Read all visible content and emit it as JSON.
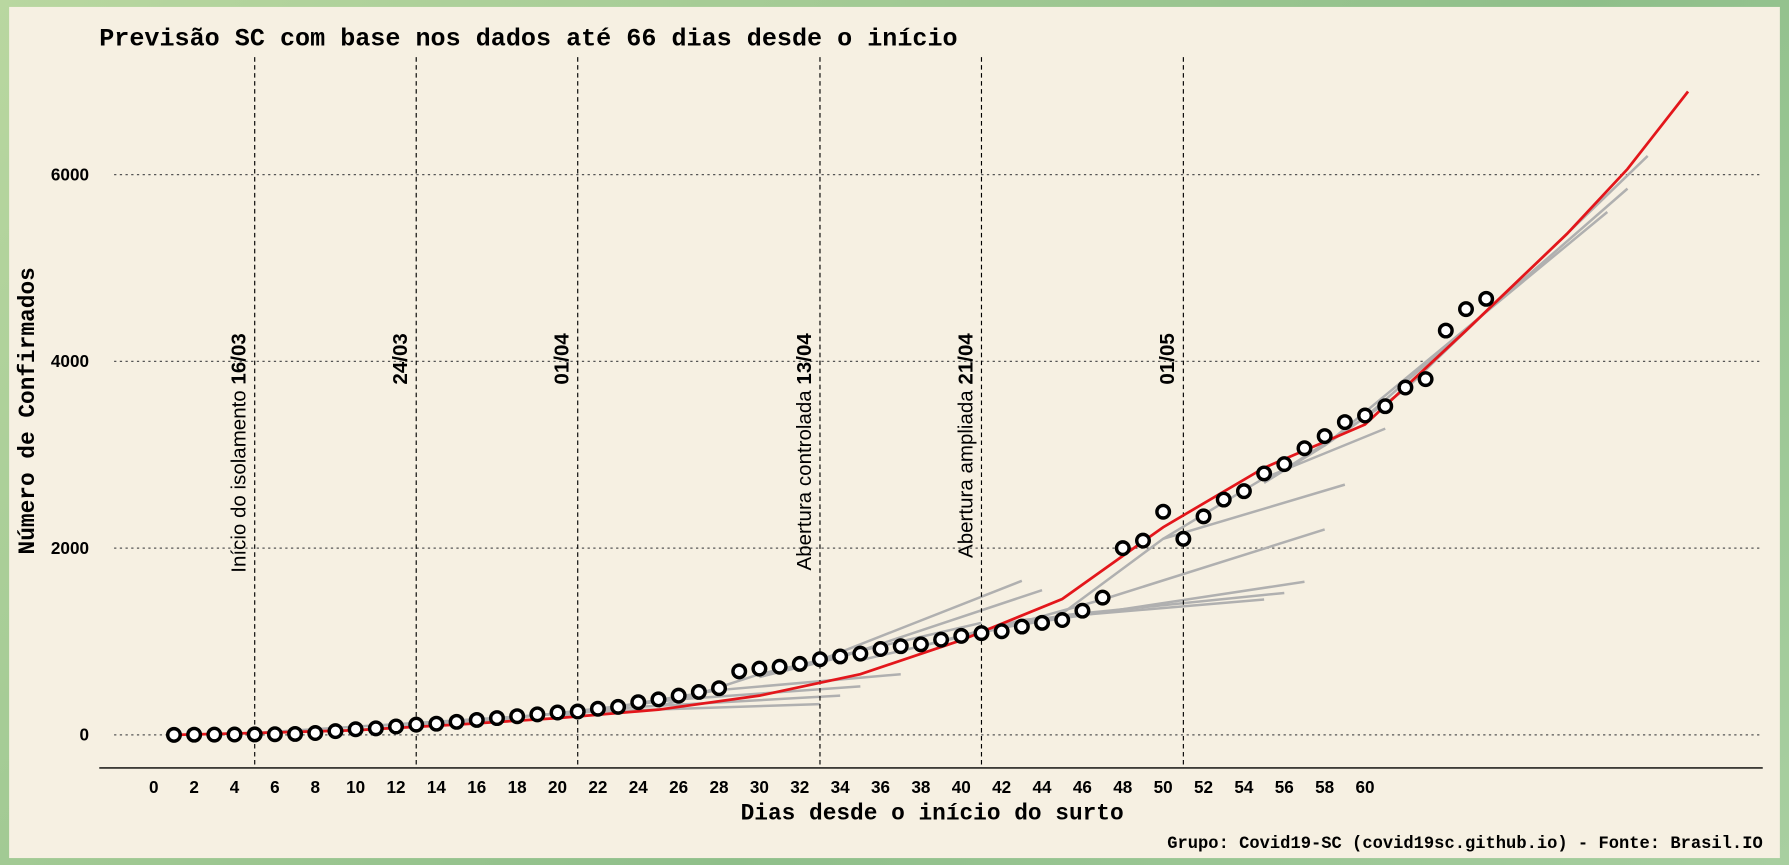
{
  "chart_data": {
    "type": "scatter",
    "title": "Previsão SC com base nos dados até 66 dias desde o início",
    "x_label": "Dias desde o início do surto",
    "y_label": "Número de Confirmados",
    "footer": "Grupo: Covid19-SC (covid19sc.github.io) -  Fonte: Brasil.IO",
    "xlim": [
      -2.7,
      79.7
    ],
    "ylim": [
      -354,
      7620
    ],
    "xticks": [
      0,
      2,
      4,
      6,
      8,
      10,
      12,
      14,
      16,
      18,
      20,
      22,
      24,
      26,
      28,
      30,
      32,
      34,
      36,
      38,
      40,
      42,
      44,
      46,
      48,
      50,
      52,
      54,
      56,
      58,
      60
    ],
    "yticks": [
      0,
      2000,
      4000,
      6000
    ],
    "grid": true,
    "points": {
      "color": "#000000",
      "x": [
        1,
        2,
        3,
        4,
        5,
        6,
        7,
        8,
        9,
        10,
        11,
        12,
        13,
        14,
        15,
        16,
        17,
        18,
        19,
        20,
        21,
        22,
        23,
        24,
        25,
        26,
        27,
        28,
        29,
        30,
        31,
        32,
        33,
        34,
        35,
        36,
        37,
        38,
        39,
        40,
        41,
        42,
        43,
        44,
        45,
        46,
        47,
        48,
        49,
        50,
        51,
        52,
        53,
        54,
        55,
        56,
        57,
        58,
        59,
        60,
        61,
        62,
        63,
        64,
        65,
        66
      ],
      "values": [
        0,
        2,
        3,
        4,
        5,
        7,
        10,
        20,
        40,
        60,
        70,
        90,
        110,
        120,
        140,
        160,
        180,
        200,
        220,
        240,
        250,
        280,
        300,
        350,
        380,
        420,
        460,
        500,
        680,
        710,
        730,
        760,
        810,
        840,
        870,
        920,
        950,
        970,
        1020,
        1060,
        1090,
        1110,
        1160,
        1200,
        1230,
        1330,
        1470,
        2000,
        2080,
        2390,
        2100,
        2340,
        2520,
        2610,
        2800,
        2900,
        3070,
        3200,
        3350,
        3420,
        3520,
        3720,
        3810,
        4330,
        4560,
        4670
      ]
    },
    "fit": {
      "color": "#e3161b",
      "x": [
        1,
        5,
        10,
        15,
        20,
        25,
        30,
        35,
        40,
        45,
        50,
        55,
        60,
        65,
        70,
        73,
        76
      ],
      "values": [
        0,
        20,
        50,
        110,
        180,
        270,
        420,
        650,
        1014,
        1455,
        2224,
        2860,
        3324,
        4330,
        5365,
        6060,
        6890
      ]
    },
    "forecast_color": "#b0b0b0",
    "forecasts": [
      {
        "x": [
          5,
          22,
          33
        ],
        "values": [
          20,
          250,
          330
        ]
      },
      {
        "x": [
          10,
          24,
          34
        ],
        "values": [
          50,
          300,
          420
        ]
      },
      {
        "x": [
          15,
          26,
          35
        ],
        "values": [
          110,
          380,
          520
        ]
      },
      {
        "x": [
          20,
          28,
          37
        ],
        "values": [
          200,
          480,
          650
        ]
      },
      {
        "x": [
          25,
          30,
          41
        ],
        "values": [
          300,
          650,
          1200
        ]
      },
      {
        "x": [
          30,
          33,
          43
        ],
        "values": [
          620,
          800,
          1650
        ]
      },
      {
        "x": [
          30,
          34,
          44
        ],
        "values": [
          620,
          830,
          1550
        ]
      },
      {
        "x": [
          35,
          42,
          57
        ],
        "values": [
          800,
          1150,
          1640
        ]
      },
      {
        "x": [
          38,
          43,
          55
        ],
        "values": [
          950,
          1230,
          1450
        ]
      },
      {
        "x": [
          40,
          45,
          56
        ],
        "values": [
          1050,
          1280,
          1520
        ]
      },
      {
        "x": [
          42,
          47,
          58
        ],
        "values": [
          1150,
          1450,
          2200
        ]
      },
      {
        "x": [
          45,
          50,
          59
        ],
        "values": [
          1300,
          2100,
          2680
        ]
      },
      {
        "x": [
          50,
          55,
          61
        ],
        "values": [
          2100,
          2750,
          3280
        ]
      },
      {
        "x": [
          55,
          58,
          72
        ],
        "values": [
          2700,
          3100,
          5600
        ]
      },
      {
        "x": [
          55,
          60,
          73
        ],
        "values": [
          2700,
          3400,
          5850
        ]
      },
      {
        "x": [
          58,
          62,
          74
        ],
        "values": [
          3100,
          3700,
          6200
        ]
      }
    ],
    "events": [
      {
        "x": 5,
        "text": "Início do isolamento",
        "date": "16/03"
      },
      {
        "x": 13,
        "date": "24/03"
      },
      {
        "x": 21,
        "date": "01/04"
      },
      {
        "x": 33,
        "text": "Abertura controlada",
        "date": "13/04"
      },
      {
        "x": 41,
        "text": "Abertura ampliada",
        "date": "21/04"
      },
      {
        "x": 51,
        "date": "01/05"
      }
    ]
  }
}
